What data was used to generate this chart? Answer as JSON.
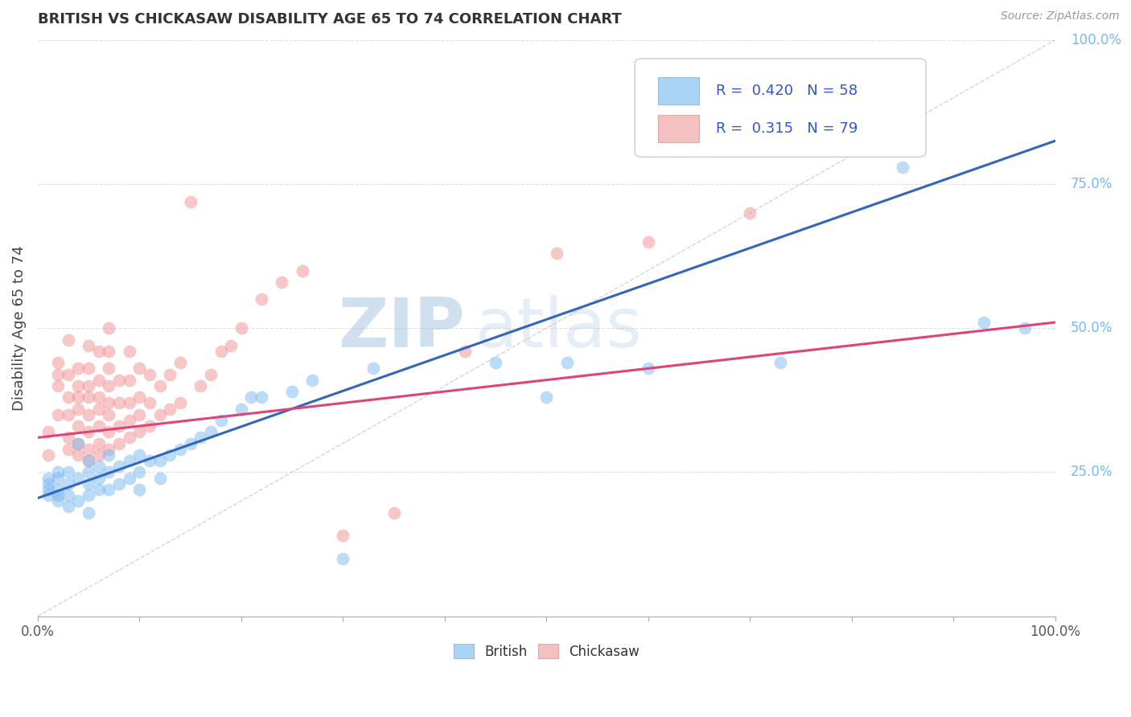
{
  "title": "BRITISH VS CHICKASAW DISABILITY AGE 65 TO 74 CORRELATION CHART",
  "source": "Source: ZipAtlas.com",
  "ylabel": "Disability Age 65 to 74",
  "xlim": [
    0.0,
    1.0
  ],
  "ylim": [
    0.0,
    1.0
  ],
  "ytick_positions": [
    0.25,
    0.5,
    0.75,
    1.0
  ],
  "ytick_labels": [
    "25.0%",
    "50.0%",
    "75.0%",
    "100.0%"
  ],
  "british_R": 0.42,
  "british_N": 58,
  "chickasaw_R": 0.315,
  "chickasaw_N": 79,
  "british_color": "#7ab8f0",
  "chickasaw_color": "#f09090",
  "british_line_color": "#3366bb",
  "chickasaw_line_color": "#dd4477",
  "diagonal_color": "#bbbbbb",
  "legend_british_color": "#aad4f5",
  "legend_chickasaw_color": "#f5c0c0",
  "watermark_color": "#99bbdd",
  "british_intercept": 0.205,
  "british_slope": 0.62,
  "chickasaw_intercept": 0.31,
  "chickasaw_slope": 0.2,
  "british_x": [
    0.01,
    0.01,
    0.01,
    0.01,
    0.02,
    0.02,
    0.02,
    0.02,
    0.02,
    0.03,
    0.03,
    0.03,
    0.03,
    0.04,
    0.04,
    0.04,
    0.05,
    0.05,
    0.05,
    0.05,
    0.05,
    0.06,
    0.06,
    0.06,
    0.07,
    0.07,
    0.07,
    0.08,
    0.08,
    0.09,
    0.09,
    0.1,
    0.1,
    0.1,
    0.11,
    0.12,
    0.12,
    0.13,
    0.14,
    0.15,
    0.16,
    0.17,
    0.18,
    0.2,
    0.21,
    0.22,
    0.25,
    0.27,
    0.3,
    0.33,
    0.45,
    0.5,
    0.52,
    0.6,
    0.73,
    0.85,
    0.93,
    0.97
  ],
  "british_y": [
    0.21,
    0.22,
    0.23,
    0.24,
    0.2,
    0.21,
    0.22,
    0.24,
    0.25,
    0.19,
    0.21,
    0.23,
    0.25,
    0.2,
    0.24,
    0.3,
    0.18,
    0.21,
    0.23,
    0.25,
    0.27,
    0.22,
    0.24,
    0.26,
    0.22,
    0.25,
    0.28,
    0.23,
    0.26,
    0.24,
    0.27,
    0.22,
    0.25,
    0.28,
    0.27,
    0.24,
    0.27,
    0.28,
    0.29,
    0.3,
    0.31,
    0.32,
    0.34,
    0.36,
    0.38,
    0.38,
    0.39,
    0.41,
    0.1,
    0.43,
    0.44,
    0.38,
    0.44,
    0.43,
    0.44,
    0.78,
    0.51,
    0.5
  ],
  "chickasaw_x": [
    0.01,
    0.01,
    0.02,
    0.02,
    0.02,
    0.02,
    0.03,
    0.03,
    0.03,
    0.03,
    0.03,
    0.03,
    0.04,
    0.04,
    0.04,
    0.04,
    0.04,
    0.04,
    0.04,
    0.05,
    0.05,
    0.05,
    0.05,
    0.05,
    0.05,
    0.05,
    0.05,
    0.06,
    0.06,
    0.06,
    0.06,
    0.06,
    0.06,
    0.06,
    0.07,
    0.07,
    0.07,
    0.07,
    0.07,
    0.07,
    0.07,
    0.07,
    0.08,
    0.08,
    0.08,
    0.08,
    0.09,
    0.09,
    0.09,
    0.09,
    0.09,
    0.1,
    0.1,
    0.1,
    0.1,
    0.11,
    0.11,
    0.11,
    0.12,
    0.12,
    0.13,
    0.13,
    0.14,
    0.14,
    0.15,
    0.16,
    0.17,
    0.18,
    0.19,
    0.2,
    0.22,
    0.24,
    0.26,
    0.3,
    0.35,
    0.42,
    0.51,
    0.6,
    0.7
  ],
  "chickasaw_y": [
    0.28,
    0.32,
    0.35,
    0.4,
    0.42,
    0.44,
    0.29,
    0.31,
    0.35,
    0.38,
    0.42,
    0.48,
    0.28,
    0.3,
    0.33,
    0.36,
    0.38,
    0.4,
    0.43,
    0.27,
    0.29,
    0.32,
    0.35,
    0.38,
    0.4,
    0.43,
    0.47,
    0.28,
    0.3,
    0.33,
    0.36,
    0.38,
    0.41,
    0.46,
    0.29,
    0.32,
    0.35,
    0.37,
    0.4,
    0.43,
    0.46,
    0.5,
    0.3,
    0.33,
    0.37,
    0.41,
    0.31,
    0.34,
    0.37,
    0.41,
    0.46,
    0.32,
    0.35,
    0.38,
    0.43,
    0.33,
    0.37,
    0.42,
    0.35,
    0.4,
    0.36,
    0.42,
    0.37,
    0.44,
    0.72,
    0.4,
    0.42,
    0.46,
    0.47,
    0.5,
    0.55,
    0.58,
    0.6,
    0.14,
    0.18,
    0.46,
    0.63,
    0.65,
    0.7
  ],
  "grid_color": "#e0e0e0",
  "background_color": "#ffffff",
  "font_color_title": "#333333",
  "legend_R_color": "#3355cc",
  "num_xticks": 10
}
